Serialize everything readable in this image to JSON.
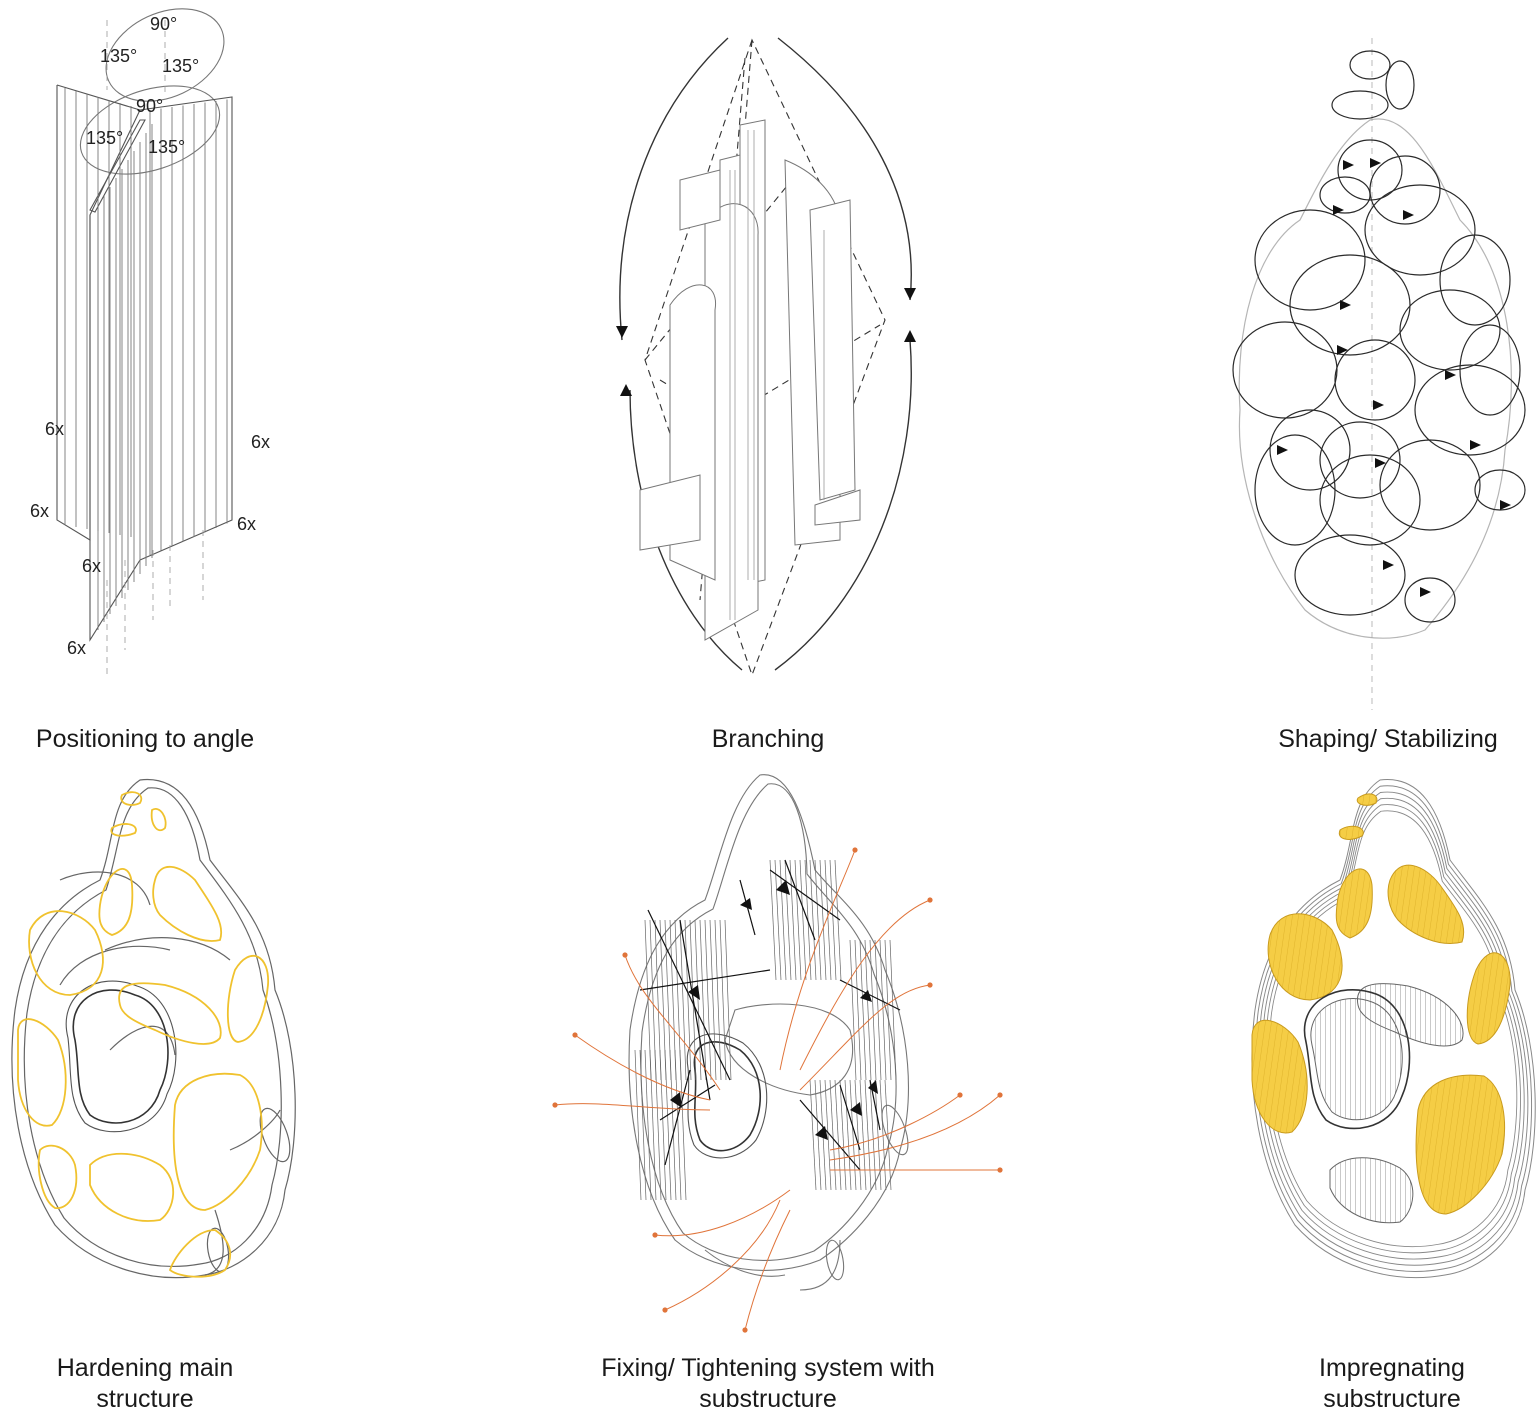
{
  "panels": [
    {
      "caption": "Positioning to angle",
      "angle_labels": [
        "90°",
        "135°",
        "135°",
        "90°",
        "135°",
        "135°"
      ],
      "count_labels": [
        "6x",
        "6x",
        "6x",
        "6x",
        "6x",
        "6x"
      ]
    },
    {
      "caption": "Branching"
    },
    {
      "caption": "Shaping/ Stabilizing"
    },
    {
      "caption_line1": "Hardening main",
      "caption_line2": "structure"
    },
    {
      "caption_line1": "Fixing/ Tightening system with",
      "caption_line2": "substructure"
    },
    {
      "caption_line1": "Impregnating",
      "caption_line2": "substructure"
    }
  ],
  "colors": {
    "line": "#3a3a3a",
    "light_line": "#9a9a9a",
    "highlight_yellow": "#f0c22e",
    "fill_yellow": "#f5cd45",
    "tension_orange": "#e0743a"
  }
}
